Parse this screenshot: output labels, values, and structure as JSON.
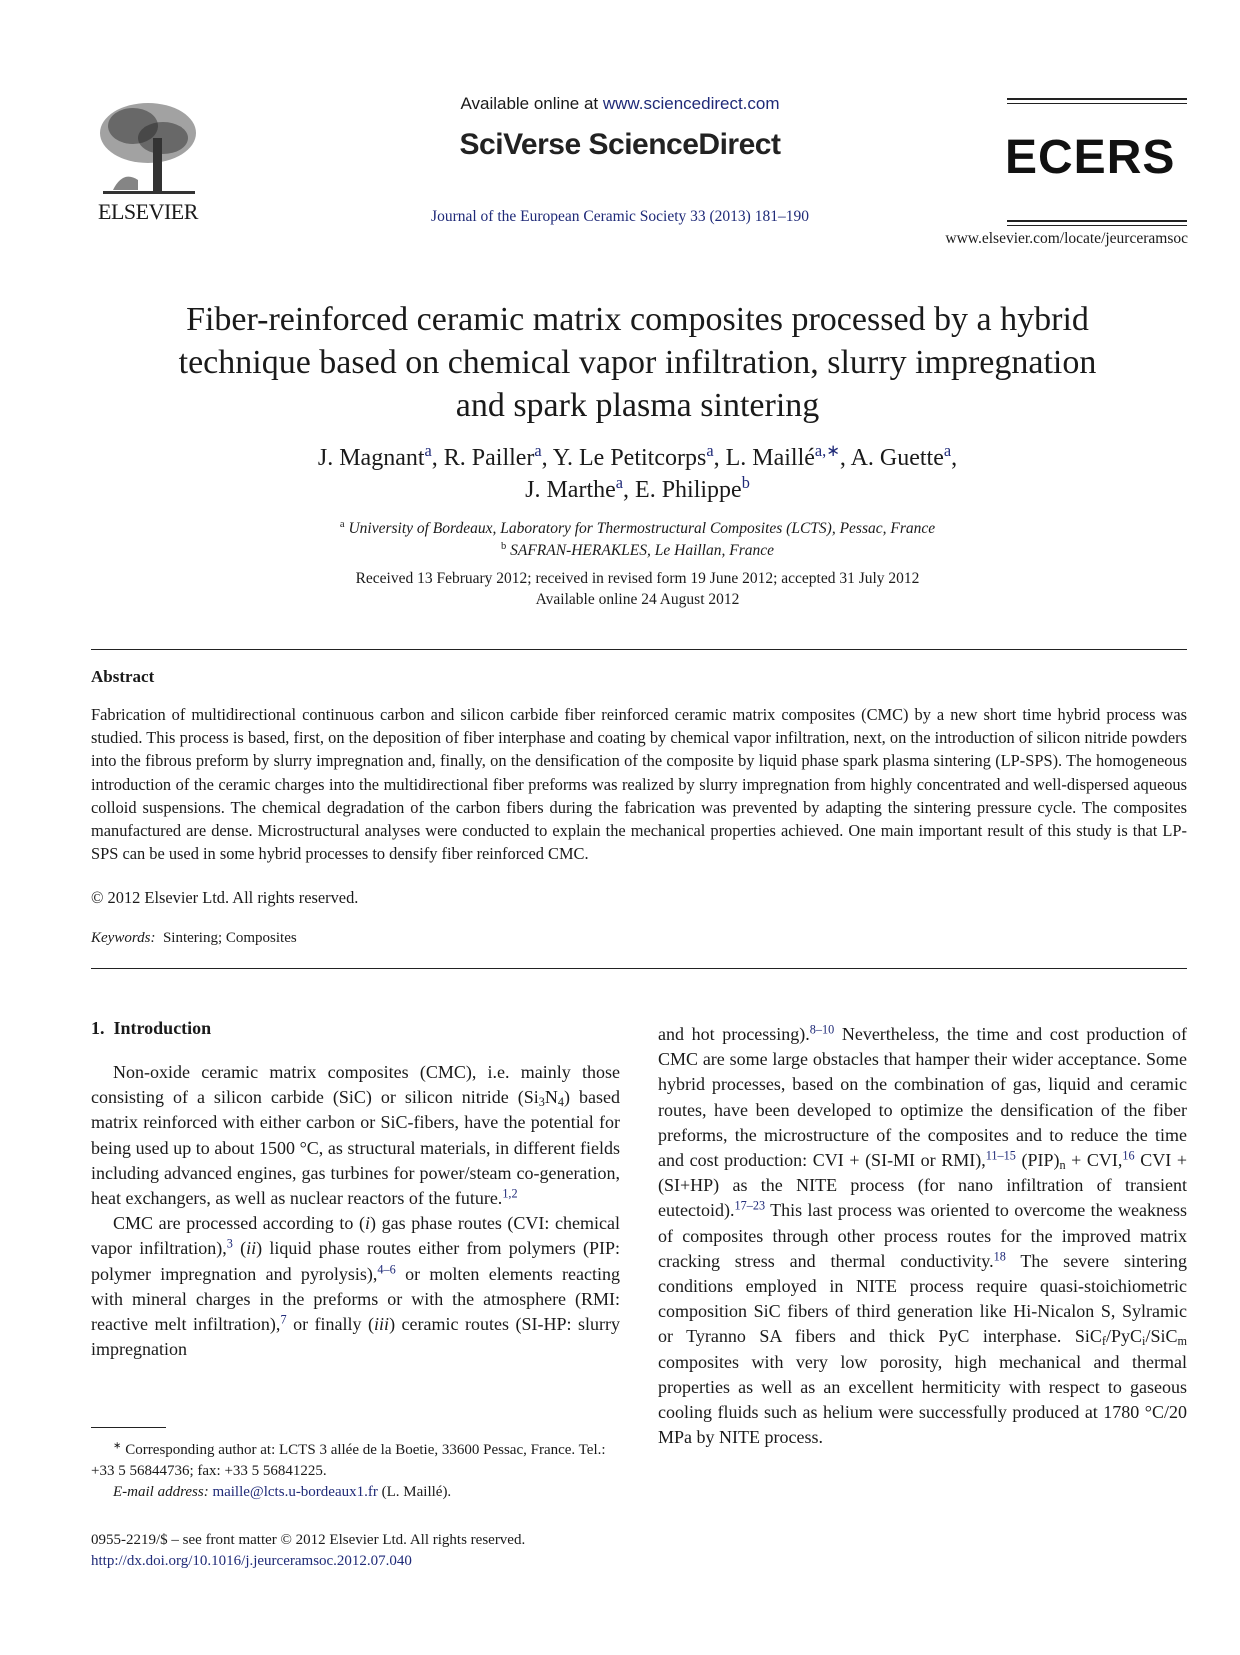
{
  "header": {
    "publisher_logo_text": "ELSEVIER",
    "available_prefix": "Available online at ",
    "available_link": "www.sciencedirect.com",
    "brand": "SciVerse ScienceDirect",
    "journal_citation": "Journal of the European Ceramic Society 33 (2013) 181–190",
    "society_logo_text": "ECERS",
    "journal_url": "www.elsevier.com/locate/jeurceramsoc"
  },
  "article": {
    "title_lines": [
      "Fiber-reinforced ceramic matrix composites processed by a hybrid",
      "technique based on chemical vapor infiltration, slurry impregnation",
      "and spark plasma sintering"
    ],
    "authors_line1": [
      {
        "t": "J. Magnant"
      },
      {
        "sup": "a"
      },
      {
        "t": ", R. Pailler"
      },
      {
        "sup": "a"
      },
      {
        "t": ", Y. Le Petitcorps"
      },
      {
        "sup": "a"
      },
      {
        "t": ", L. Maillé"
      },
      {
        "sup": "a,∗"
      },
      {
        "t": ", A. Guette"
      },
      {
        "sup": "a"
      },
      {
        "t": ","
      }
    ],
    "authors_line2": [
      {
        "t": "J. Marthe"
      },
      {
        "sup": "a"
      },
      {
        "t": ", E. Philippe"
      },
      {
        "sup": "b"
      }
    ],
    "affiliations": [
      {
        "mark": "a",
        "text": "University of Bordeaux, Laboratory for Thermostructural Composites (LCTS), Pessac, France"
      },
      {
        "mark": "b",
        "text": "SAFRAN-HERAKLES, Le Haillan, France"
      }
    ],
    "received": "Received 13 February 2012; received in revised form 19 June 2012; accepted 31 July 2012",
    "available_online": "Available online 24 August 2012"
  },
  "abstract": {
    "heading": "Abstract",
    "text": "Fabrication of multidirectional continuous carbon and silicon carbide fiber reinforced ceramic matrix composites (CMC) by a new short time hybrid process was studied. This process is based, first, on the deposition of fiber interphase and coating by chemical vapor infiltration, next, on the introduction of silicon nitride powders into the fibrous preform by slurry impregnation and, finally, on the densification of the composite by liquid phase spark plasma sintering (LP-SPS). The homogeneous introduction of the ceramic charges into the multidirectional fiber preforms was realized by slurry impregnation from highly concentrated and well-dispersed aqueous colloid suspensions. The chemical degradation of the carbon fibers during the fabrication was prevented by adapting the sintering pressure cycle. The composites manufactured are dense. Microstructural analyses were conducted to explain the mechanical properties achieved. One main important result of this study is that LP-SPS can be used in some hybrid processes to densify fiber reinforced CMC.",
    "copyright": "© 2012 Elsevier Ltd. All rights reserved.",
    "keywords_label": "Keywords:",
    "keywords": "Sintering; Composites"
  },
  "intro": {
    "heading": "1.  Introduction",
    "col1": [
      [
        {
          "t": "Non-oxide ceramic matrix composites (CMC), i.e. mainly those consisting of a silicon carbide (SiC) or silicon nitride (Si"
        },
        {
          "sub": "3"
        },
        {
          "t": "N"
        },
        {
          "sub": "4"
        },
        {
          "t": ") based matrix reinforced with either carbon or SiC-fibers, have the potential for being used up to about 1500 °C, as structural materials, in different fields including advanced engines, gas turbines for power/steam co-generation, heat exchangers, as well as nuclear reactors of the future."
        },
        {
          "sup": "1,2"
        }
      ],
      [
        {
          "t": "CMC are processed according to ("
        },
        {
          "i": "i"
        },
        {
          "t": ") gas phase routes (CVI: chemical vapor infiltration),"
        },
        {
          "sup": "3"
        },
        {
          "t": " ("
        },
        {
          "i": "ii"
        },
        {
          "t": ") liquid phase routes either from polymers (PIP: polymer impregnation and pyrolysis),"
        },
        {
          "sup": "4–6"
        },
        {
          "t": " or molten elements reacting with mineral charges in the preforms or with the atmosphere (RMI: reactive melt infiltration),"
        },
        {
          "sup": "7"
        },
        {
          "t": " or finally ("
        },
        {
          "i": "iii"
        },
        {
          "t": ") ceramic routes (SI-HP: slurry impregnation"
        }
      ]
    ],
    "col2": [
      [
        {
          "t": "and hot processing)."
        },
        {
          "sup": "8–10"
        },
        {
          "t": " Nevertheless, the time and cost production of CMC are some large obstacles that hamper their wider acceptance. Some hybrid processes, based on the combination of gas, liquid and ceramic routes, have been developed to optimize the densification of the fiber preforms, the microstructure of the composites and to reduce the time and cost production: CVI + (SI-MI or RMI),"
        },
        {
          "sup": "11–15"
        },
        {
          "t": " (PIP)"
        },
        {
          "sub": "n"
        },
        {
          "t": " + CVI,"
        },
        {
          "sup": "16"
        },
        {
          "t": " CVI + (SI+HP) as the NITE process (for nano infiltration of transient eutectoid)."
        },
        {
          "sup": "17–23"
        },
        {
          "t": " This last process was oriented to overcome the weakness of composites through other process routes for the improved matrix cracking stress and thermal conductivity."
        },
        {
          "sup": "18"
        },
        {
          "t": " The severe sintering conditions employed in NITE process require quasi-stoichiometric composition SiC fibers of third generation like Hi-Nicalon S, Sylramic or Tyranno SA fibers and thick PyC interphase. SiC"
        },
        {
          "sub": "f"
        },
        {
          "t": "/PyC"
        },
        {
          "sub": "i"
        },
        {
          "t": "/SiC"
        },
        {
          "sub": "m"
        },
        {
          "t": " composites with very low porosity, high mechanical and thermal properties as well as an excellent hermiticity with respect to gaseous cooling fluids such as helium were successfully produced at 1780 °C/20 MPa by NITE process."
        }
      ]
    ]
  },
  "footnote": {
    "mark": "∗",
    "corresponding": "Corresponding author at: LCTS 3 allée de la Boetie, 33600 Pessac, France. Tel.: +33 5 56844736; fax: +33 5 56841225.",
    "email_label": "E-mail address:",
    "email": "maille@lcts.u-bordeaux1.fr",
    "email_name": " (L. Maillé)."
  },
  "front_matter": {
    "issn": "0955-2219/$ – see front matter © 2012 Elsevier Ltd. All rights reserved.",
    "doi": "http://dx.doi.org/10.1016/j.jeurceramsoc.2012.07.040"
  },
  "colors": {
    "link": "#1f2a78",
    "text": "#1a1a1a"
  }
}
